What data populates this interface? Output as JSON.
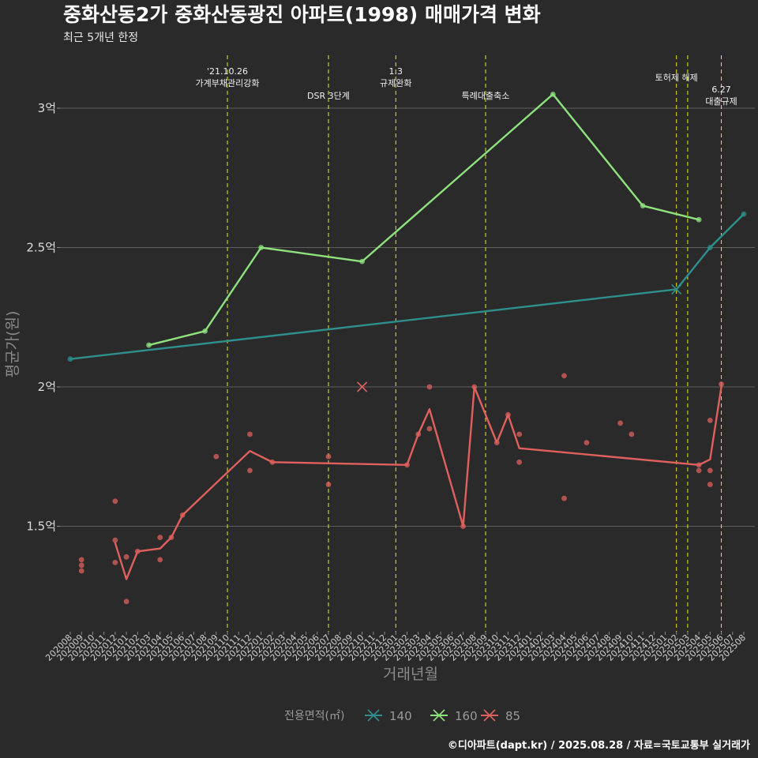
{
  "chart_data": {
    "type": "line",
    "title": "중화산동2가 중화산동광진 아파트(1998) 매매가격 변화",
    "subtitle": "최근 5개년 한정",
    "xlabel": "거래년월",
    "ylabel": "평균가(원)",
    "caption": "©디아파트(dapt.kr) / 2025.08.28 / 자료=국토교통부 실거래가",
    "ylim": [
      1.18,
      3.2
    ],
    "yticks": [
      {
        "value": 1.5,
        "label": "1.5억"
      },
      {
        "value": 2.0,
        "label": "2억"
      },
      {
        "value": 2.5,
        "label": "2.5억"
      },
      {
        "value": 3.0,
        "label": "3억"
      }
    ],
    "categories": [
      "202008",
      "202009",
      "202010",
      "202011",
      "202012",
      "202101",
      "202102",
      "202103",
      "202104",
      "202105",
      "202106",
      "202107",
      "202108",
      "202109",
      "202110",
      "202111",
      "202112",
      "202201",
      "202202",
      "202203",
      "202204",
      "202205",
      "202206",
      "202207",
      "202208",
      "202209",
      "202210",
      "202211",
      "202212",
      "202301",
      "202302",
      "202303",
      "202304",
      "202305",
      "202306",
      "202307",
      "202308",
      "202309",
      "202310",
      "202311",
      "202312",
      "202401",
      "202402",
      "202403",
      "202404",
      "202405",
      "202406",
      "202407",
      "202408",
      "202409",
      "202410",
      "202411",
      "202412",
      "202501",
      "202502",
      "202503",
      "202504",
      "202505",
      "202506",
      "202507",
      "202508"
    ],
    "events": [
      {
        "month": "202110",
        "lines": [
          "'21.10.26",
          "가계부채관리강화"
        ]
      },
      {
        "month": "202207",
        "lines": [
          "DSR 3단계"
        ]
      },
      {
        "month": "202301",
        "lines": [
          "1.3",
          "규제완화"
        ]
      },
      {
        "month": "202309",
        "lines": [
          "특례대출축소"
        ]
      },
      {
        "month": "202502",
        "lines": [
          "토허제 해제"
        ]
      },
      {
        "month": "202503",
        "lines": []
      },
      {
        "month": "202506",
        "lines": [
          "6.27",
          "대출규제"
        ]
      }
    ],
    "legend_title": "전용면적(㎡)",
    "series": [
      {
        "name": "140",
        "color": "#2e8f8c",
        "line": [
          [
            "202008",
            2.1
          ],
          [
            "202502",
            2.35
          ],
          [
            "202505",
            2.5
          ],
          [
            "202508",
            2.62
          ]
        ],
        "points": [
          [
            "202008",
            2.1
          ],
          [
            "202505",
            2.5
          ],
          [
            "202508",
            2.62
          ]
        ],
        "crosses": [
          [
            "202502",
            2.35
          ]
        ]
      },
      {
        "name": "160",
        "color": "#8ee27d",
        "line": [
          [
            "202103",
            2.15
          ],
          [
            "202108",
            2.2
          ],
          [
            "202201",
            2.5
          ],
          [
            "202210",
            2.45
          ],
          [
            "202403",
            3.05
          ],
          [
            "202411",
            2.65
          ],
          [
            "202504",
            2.6
          ]
        ],
        "points": [
          [
            "202103",
            2.15
          ],
          [
            "202108",
            2.2
          ],
          [
            "202201",
            2.5
          ],
          [
            "202210",
            2.45
          ],
          [
            "202403",
            3.05
          ],
          [
            "202411",
            2.65
          ],
          [
            "202504",
            2.6
          ]
        ],
        "crosses": []
      },
      {
        "name": "85",
        "color": "#e0605e",
        "line": [
          [
            "202012",
            1.44
          ],
          [
            "202101",
            1.31
          ],
          [
            "202102",
            1.41
          ],
          [
            "202104",
            1.42
          ],
          [
            "202105",
            1.46
          ],
          [
            "202106",
            1.54
          ],
          [
            "202112",
            1.77
          ],
          [
            "202202",
            1.73
          ],
          [
            "202302",
            1.72
          ],
          [
            "202303",
            1.83
          ],
          [
            "202304",
            1.92
          ],
          [
            "202307",
            1.5
          ],
          [
            "202308",
            2.0
          ],
          [
            "202310",
            1.8
          ],
          [
            "202311",
            1.9
          ],
          [
            "202312",
            1.78
          ],
          [
            "202504",
            1.72
          ],
          [
            "202505",
            1.74
          ],
          [
            "202506",
            2.0
          ]
        ],
        "points": [
          [
            "202009",
            1.38
          ],
          [
            "202009",
            1.36
          ],
          [
            "202009",
            1.34
          ],
          [
            "202012",
            1.59
          ],
          [
            "202012",
            1.45
          ],
          [
            "202012",
            1.37
          ],
          [
            "202101",
            1.39
          ],
          [
            "202101",
            1.23
          ],
          [
            "202102",
            1.41
          ],
          [
            "202104",
            1.46
          ],
          [
            "202104",
            1.38
          ],
          [
            "202105",
            1.46
          ],
          [
            "202106",
            1.54
          ],
          [
            "202109",
            1.75
          ],
          [
            "202112",
            1.83
          ],
          [
            "202112",
            1.7
          ],
          [
            "202202",
            1.73
          ],
          [
            "202207",
            1.75
          ],
          [
            "202207",
            1.65
          ],
          [
            "202302",
            1.72
          ],
          [
            "202303",
            1.83
          ],
          [
            "202304",
            2.0
          ],
          [
            "202304",
            1.85
          ],
          [
            "202307",
            1.5
          ],
          [
            "202308",
            2.0
          ],
          [
            "202310",
            1.8
          ],
          [
            "202311",
            1.9
          ],
          [
            "202312",
            1.83
          ],
          [
            "202312",
            1.73
          ],
          [
            "202404",
            2.04
          ],
          [
            "202404",
            1.6
          ],
          [
            "202406",
            1.8
          ],
          [
            "202409",
            1.87
          ],
          [
            "202410",
            1.83
          ],
          [
            "202504",
            1.72
          ],
          [
            "202504",
            1.7
          ],
          [
            "202505",
            1.88
          ],
          [
            "202505",
            1.7
          ],
          [
            "202505",
            1.65
          ],
          [
            "202506",
            2.01
          ]
        ],
        "crosses": [
          [
            "202210",
            2.0
          ]
        ]
      }
    ]
  }
}
